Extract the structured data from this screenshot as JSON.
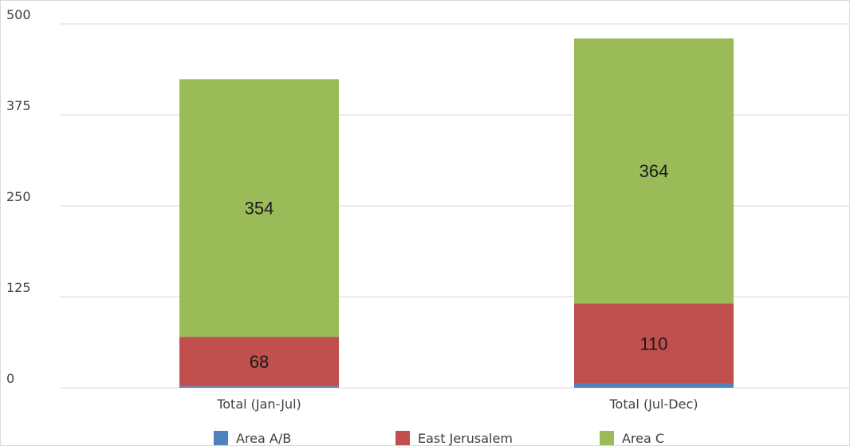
{
  "chart_data": {
    "type": "bar",
    "stacked": true,
    "categories": [
      "Total (Jan-Jul)",
      "Total (Jul-Dec)"
    ],
    "series": [
      {
        "name": "Area A/B",
        "values": [
          2,
          6
        ],
        "color": "#4f81bd",
        "show_labels": [
          false,
          false
        ]
      },
      {
        "name": "East Jerusalem",
        "values": [
          68,
          110
        ],
        "color": "#c0504d",
        "show_labels": [
          true,
          true
        ]
      },
      {
        "name": "Area C",
        "values": [
          354,
          364
        ],
        "color": "#9bbb59",
        "show_labels": [
          true,
          true
        ]
      }
    ],
    "yticks": [
      "0",
      "125",
      "250",
      "375",
      "500"
    ],
    "ylim": [
      0,
      500
    ],
    "grid": true,
    "legend": "bottom"
  }
}
